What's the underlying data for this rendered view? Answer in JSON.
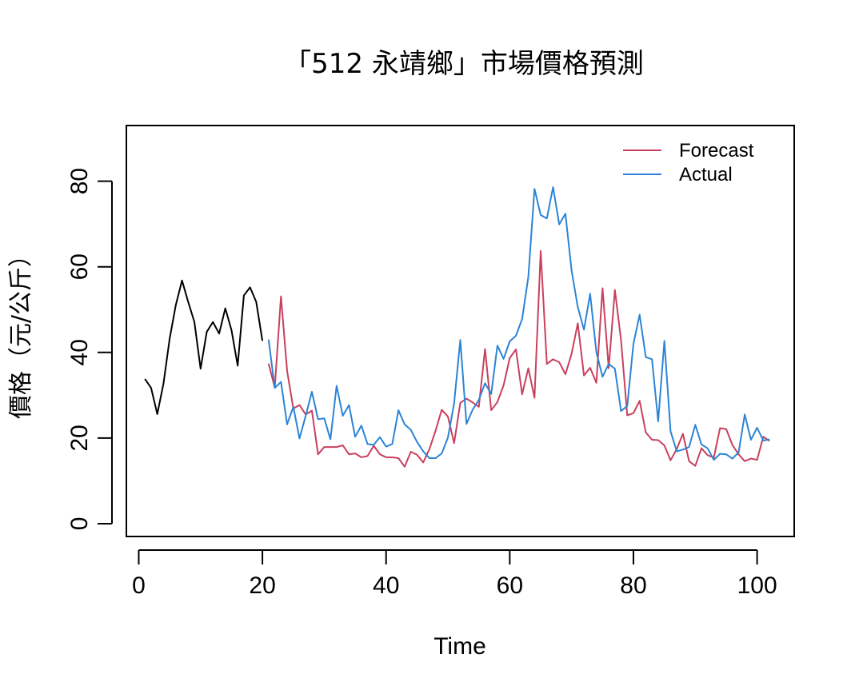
{
  "chart_data": {
    "type": "line",
    "title": "「512 永靖鄉」市場價格預測",
    "xlabel": "Time",
    "ylabel": "價格（元/公斤）",
    "xlim": [
      -2,
      106
    ],
    "ylim": [
      -3,
      93
    ],
    "x_ticks": [
      0,
      20,
      40,
      60,
      80,
      100
    ],
    "y_ticks": [
      0,
      20,
      40,
      60,
      80
    ],
    "grid": false,
    "legend_position": "top-right",
    "colors": {
      "history": "#000000",
      "forecast": "#C9405E",
      "actual": "#2C84D6"
    },
    "series": [
      {
        "key": "history",
        "x_start": 1,
        "values": [
          33.8,
          31.7,
          25.6,
          32.7,
          43.2,
          51.1,
          56.8,
          51.8,
          47.1,
          36.2,
          44.8,
          47.1,
          44.4,
          50.3,
          45.2,
          36.9,
          53.3,
          55.2,
          51.8,
          42.7
        ]
      },
      {
        "key": "forecast",
        "name": "Forecast",
        "x_start": 21,
        "values": [
          37.4,
          31.8,
          53.1,
          35.6,
          26.9,
          27.7,
          25.5,
          26.4,
          16.2,
          17.9,
          17.9,
          17.9,
          18.3,
          16.2,
          16.4,
          15.5,
          15.8,
          18.2,
          16.2,
          15.5,
          15.5,
          15.3,
          13.3,
          16.8,
          16.1,
          14.3,
          17.4,
          21.7,
          26.6,
          25.0,
          18.8,
          28.2,
          29.2,
          28.3,
          27.3,
          40.8,
          26.5,
          28.4,
          32.3,
          38.7,
          40.7,
          30.2,
          36.3,
          29.4,
          63.7,
          37.3,
          38.4,
          37.7,
          34.9,
          39.7,
          46.8,
          34.6,
          36.4,
          32.9,
          55.0,
          36.3,
          54.6,
          42.8,
          25.3,
          25.8,
          28.7,
          21.3,
          19.6,
          19.5,
          18.3,
          14.8,
          17.4,
          21.0,
          14.6,
          13.5,
          17.6,
          16.0,
          15.4,
          22.3,
          22.1,
          18.4,
          16.2,
          14.6,
          15.2,
          14.9,
          20.3,
          19.3
        ]
      },
      {
        "key": "actual",
        "name": "Actual",
        "x_start": 21,
        "values": [
          43.0,
          31.7,
          33.1,
          23.2,
          27.3,
          19.9,
          25.2,
          30.8,
          24.4,
          24.6,
          19.7,
          32.2,
          25.2,
          27.7,
          20.3,
          22.9,
          18.6,
          18.4,
          20.2,
          18.0,
          18.6,
          26.5,
          23.2,
          21.9,
          19.1,
          16.9,
          15.3,
          15.3,
          16.4,
          20.1,
          28.1,
          42.9,
          23.3,
          26.6,
          28.9,
          32.8,
          30.3,
          41.6,
          38.5,
          42.6,
          43.9,
          47.8,
          57.6,
          78.2,
          72.1,
          71.3,
          78.6,
          69.9,
          72.4,
          59.1,
          50.6,
          45.3,
          53.7,
          40.1,
          34.3,
          37.3,
          36.2,
          26.3,
          27.5,
          42.0,
          48.8,
          38.9,
          38.4,
          23.9,
          42.7,
          21.6,
          16.9,
          17.3,
          17.9,
          23.1,
          18.5,
          17.6,
          14.9,
          16.3,
          16.2,
          15.2,
          16.6,
          25.5,
          19.6,
          22.4,
          19.4,
          19.7
        ]
      }
    ]
  }
}
